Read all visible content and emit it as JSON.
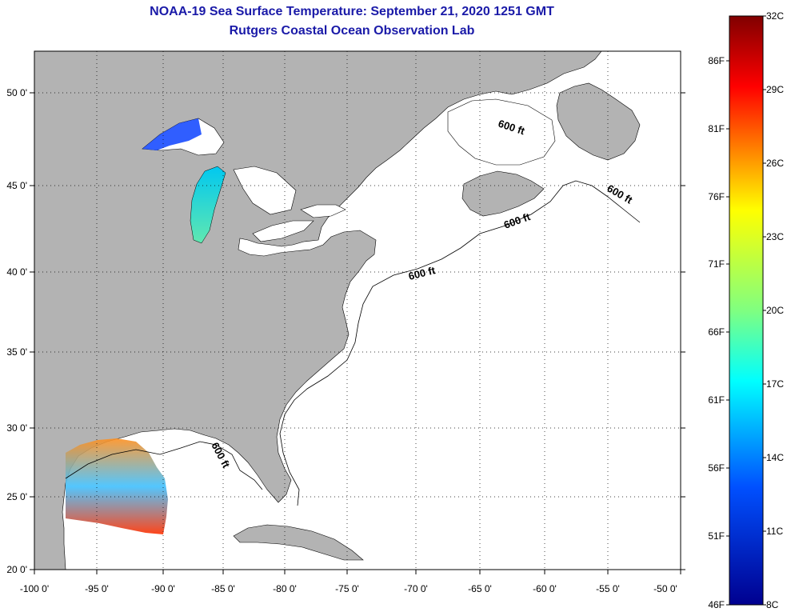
{
  "title": "NOAA-19 Sea Surface Temperature:  September 21, 2020 1251 GMT",
  "subtitle": "Rutgers Coastal Ocean Observation Lab",
  "map": {
    "lon_ticks": [
      "-100 0'",
      "-95 0'",
      "-90 0'",
      "-85 0'",
      "-80 0'",
      "-75 0'",
      "-70 0'",
      "-65 0'",
      "-60 0'",
      "-55 0'",
      "-50 0'"
    ],
    "lat_ticks": [
      "20 0'",
      "25 0'",
      "30 0'",
      "35 0'",
      "40 0'",
      "45 0'",
      "50 0'"
    ],
    "contour_labels": [
      "600 ft",
      "600 ft",
      "600 ft",
      "600 ft",
      "600 ft"
    ],
    "colors": {
      "land": "#b3b3b3",
      "water": "#ffffff",
      "grid": "#000000"
    }
  },
  "colorbar": {
    "celsius_labels": [
      "32C",
      "29C",
      "26C",
      "23C",
      "20C",
      "17C",
      "14C",
      "11C",
      "8C"
    ],
    "fahrenheit_labels": [
      "86F",
      "81F",
      "76F",
      "71F",
      "66F",
      "61F",
      "56F",
      "51F",
      "46F"
    ],
    "colors": [
      "#800000",
      "#ff0000",
      "#ff8000",
      "#ffff00",
      "#80ff80",
      "#00ffff",
      "#0080ff",
      "#0000ff",
      "#00008f"
    ]
  }
}
